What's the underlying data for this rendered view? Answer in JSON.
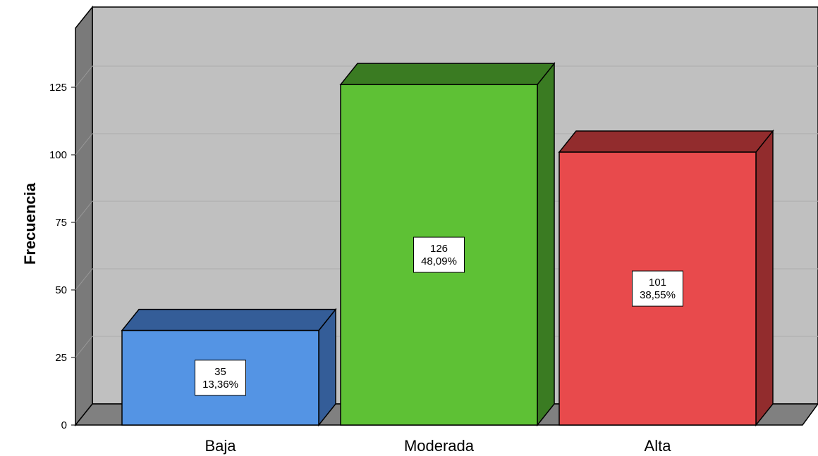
{
  "chart_data": {
    "type": "bar",
    "title": "",
    "xlabel": "",
    "ylabel": "Frecuencia",
    "categories": [
      "Baja",
      "Moderada",
      "Alta"
    ],
    "values": [
      35,
      126,
      101
    ],
    "percent_labels": [
      "13,36%",
      "48,09%",
      "38,55%"
    ],
    "yticks": [
      0,
      25,
      50,
      75,
      100,
      125
    ],
    "ylim": [
      0,
      150
    ],
    "grid": true,
    "style": "3d",
    "colors": {
      "bar_fronts": [
        "#5494e4",
        "#5ec135",
        "#e84a4c"
      ],
      "bar_tops": [
        "#345d98",
        "#3a7b22",
        "#922c2d"
      ],
      "bar_sides": [
        "#345d98",
        "#3a7b22",
        "#922c2d"
      ],
      "back_wall": "#c0c0c0",
      "side_wall": "#7a7a7a",
      "floor": "#808080",
      "gridline": "#b0b0b0"
    }
  }
}
